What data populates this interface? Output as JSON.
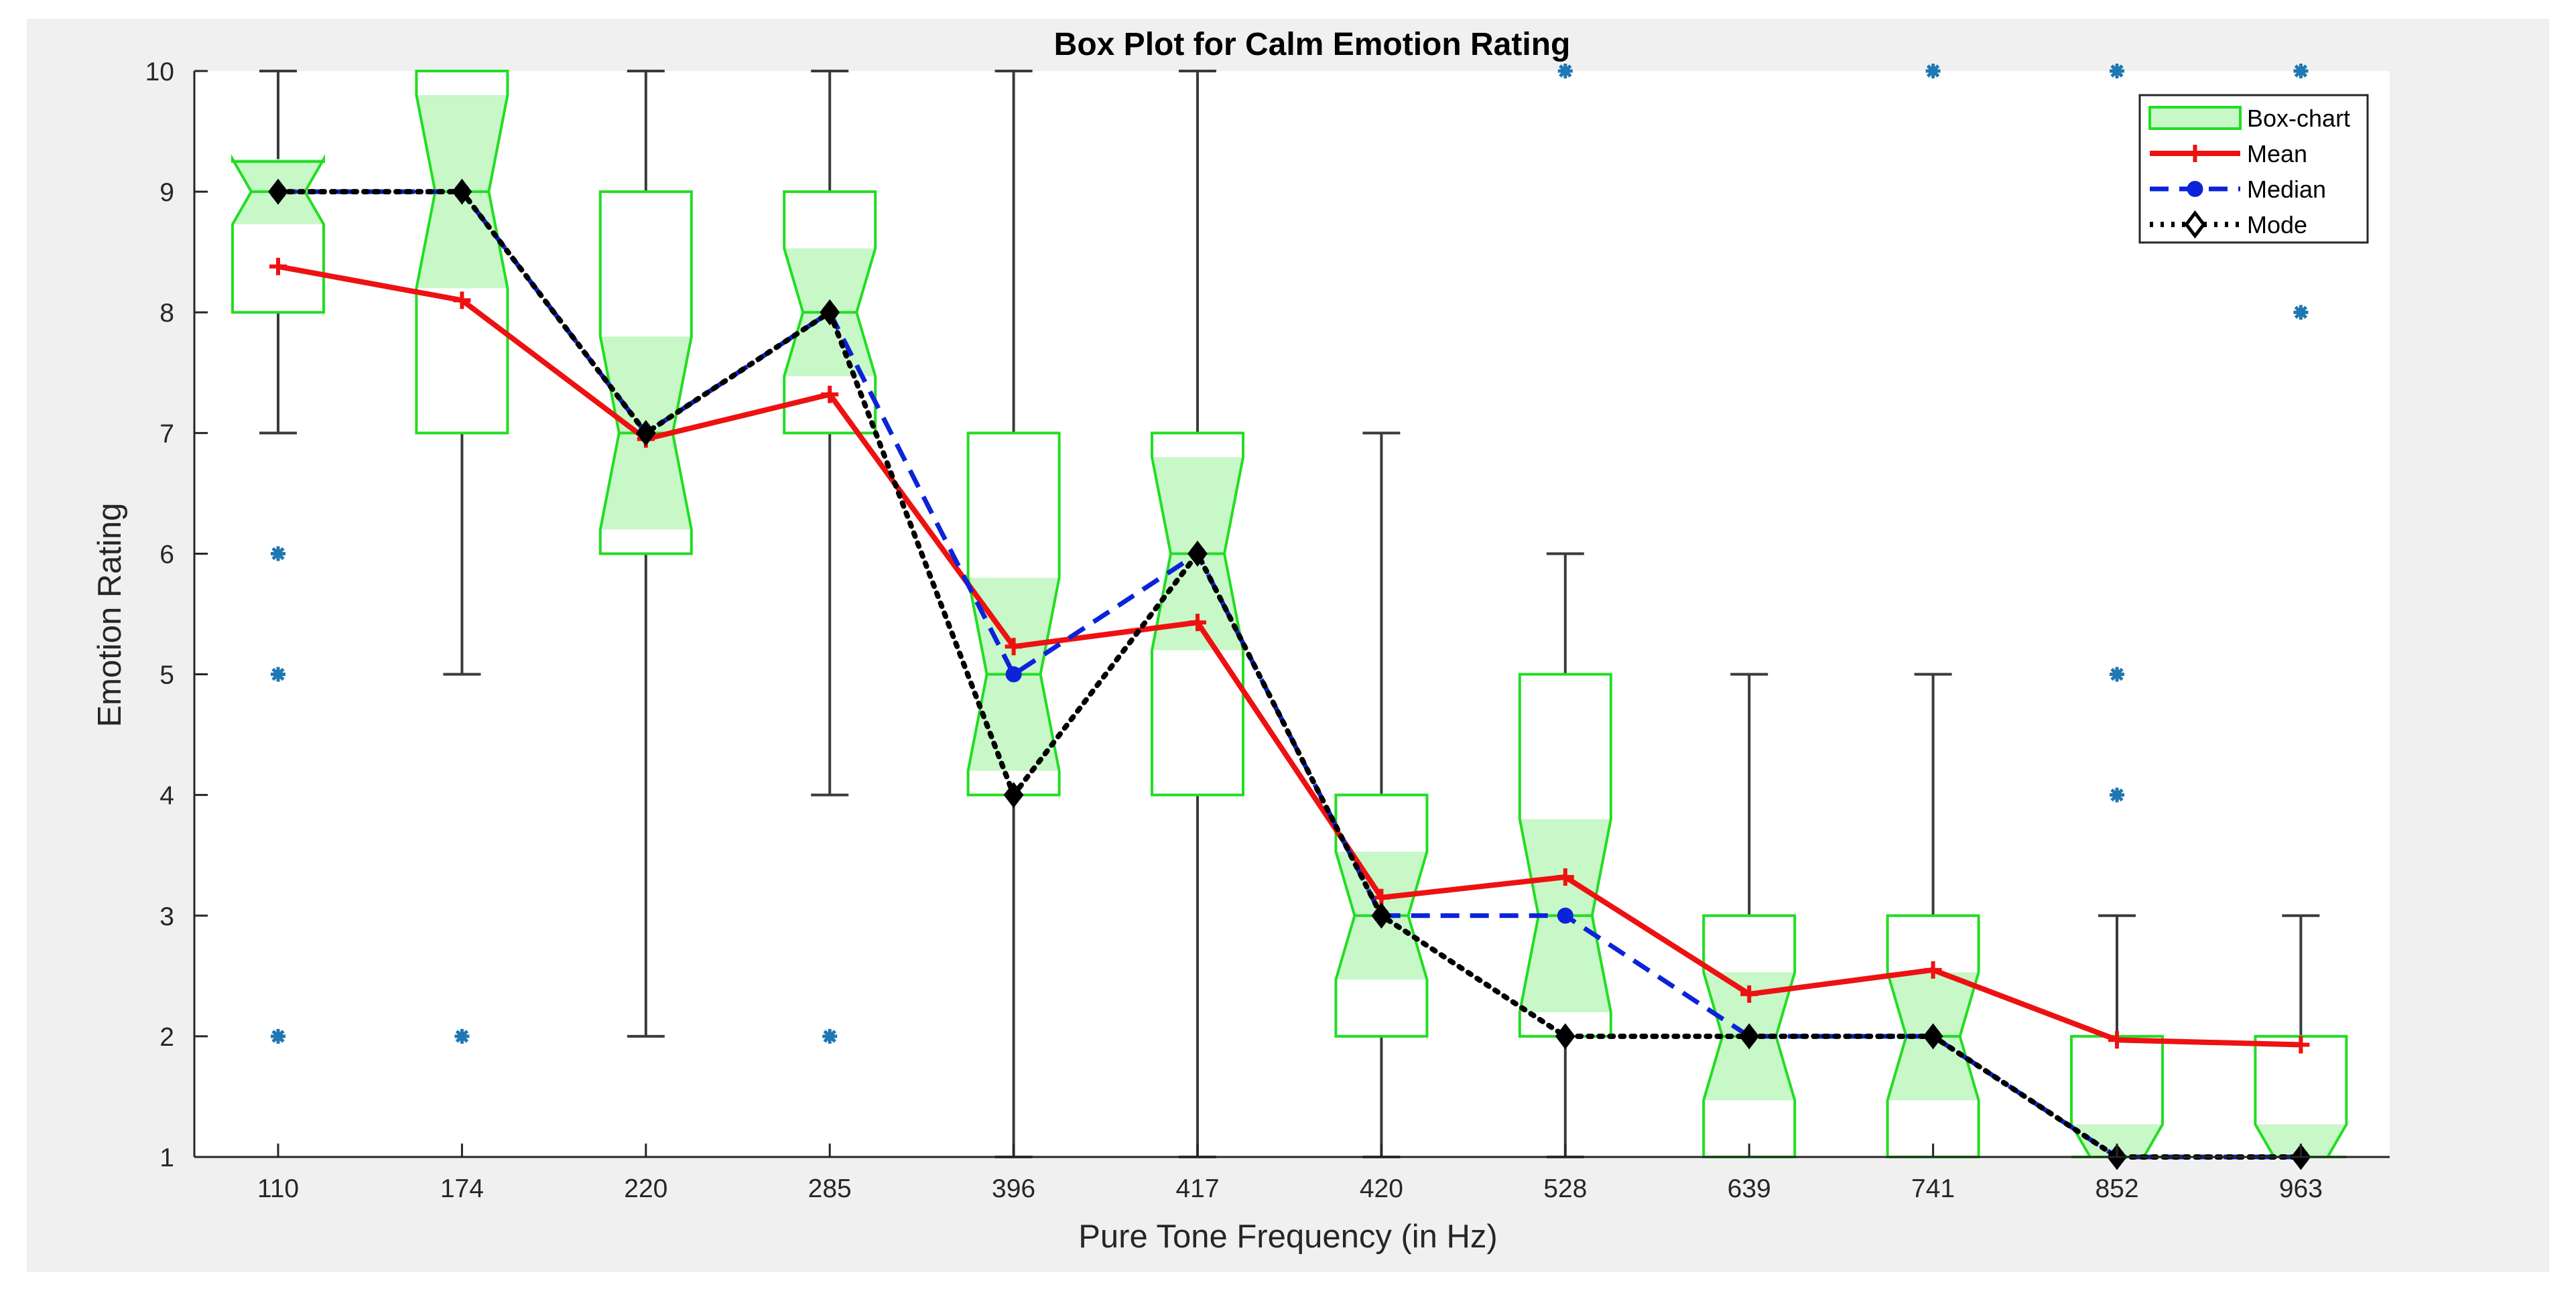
{
  "chart_data": {
    "type": "box",
    "title": "Box Plot for Calm Emotion Rating",
    "xlabel": "Pure Tone Frequency (in Hz)",
    "ylabel": "Emotion Rating",
    "ylim": [
      1,
      10
    ],
    "yticks": [
      1,
      2,
      3,
      4,
      5,
      6,
      7,
      8,
      9,
      10
    ],
    "grid": false,
    "legend_position": "top-right",
    "categories": [
      "110",
      "174",
      "220",
      "285",
      "396",
      "417",
      "420",
      "528",
      "639",
      "741",
      "852",
      "963"
    ],
    "boxes": [
      {
        "category": "110",
        "whisker_low": 7,
        "q1": 8,
        "median": 9,
        "q3": 9.25,
        "whisker_high": 10,
        "notch_low": 8.73,
        "notch_high": 9.27,
        "outliers": [
          6,
          5,
          2
        ]
      },
      {
        "category": "174",
        "whisker_low": 5,
        "q1": 7,
        "median": 9,
        "q3": 10,
        "whisker_high": 10,
        "notch_low": 8.2,
        "notch_high": 9.8,
        "outliers": [
          2
        ]
      },
      {
        "category": "220",
        "whisker_low": 2,
        "q1": 6,
        "median": 7,
        "q3": 9,
        "whisker_high": 10,
        "notch_low": 6.2,
        "notch_high": 7.8,
        "outliers": []
      },
      {
        "category": "285",
        "whisker_low": 4,
        "q1": 7,
        "median": 8,
        "q3": 9,
        "whisker_high": 10,
        "notch_low": 7.47,
        "notch_high": 8.53,
        "outliers": [
          2
        ]
      },
      {
        "category": "396",
        "whisker_low": 1,
        "q1": 4,
        "median": 5,
        "q3": 7,
        "whisker_high": 10,
        "notch_low": 4.2,
        "notch_high": 5.8,
        "outliers": []
      },
      {
        "category": "417",
        "whisker_low": 1,
        "q1": 4,
        "median": 6,
        "q3": 7,
        "whisker_high": 10,
        "notch_low": 5.2,
        "notch_high": 6.8,
        "outliers": []
      },
      {
        "category": "420",
        "whisker_low": 1,
        "q1": 2,
        "median": 3,
        "q3": 4,
        "whisker_high": 7,
        "notch_low": 2.47,
        "notch_high": 3.53,
        "outliers": []
      },
      {
        "category": "528",
        "whisker_low": 1,
        "q1": 2,
        "median": 3,
        "q3": 5,
        "whisker_high": 6,
        "notch_low": 2.2,
        "notch_high": 3.8,
        "outliers": [
          10
        ]
      },
      {
        "category": "639",
        "whisker_low": 1,
        "q1": 1,
        "median": 2,
        "q3": 3,
        "whisker_high": 5,
        "notch_low": 1.47,
        "notch_high": 2.53,
        "outliers": []
      },
      {
        "category": "741",
        "whisker_low": 1,
        "q1": 1,
        "median": 2,
        "q3": 3,
        "whisker_high": 5,
        "notch_low": 1.47,
        "notch_high": 2.53,
        "outliers": [
          10
        ]
      },
      {
        "category": "852",
        "whisker_low": 1,
        "q1": 1,
        "median": 1,
        "q3": 2,
        "whisker_high": 3,
        "notch_low": 1,
        "notch_high": 1.27,
        "outliers": [
          10,
          5,
          4
        ]
      },
      {
        "category": "963",
        "whisker_low": 1,
        "q1": 1,
        "median": 1,
        "q3": 2,
        "whisker_high": 3,
        "notch_low": 1,
        "notch_high": 1.27,
        "outliers": [
          10,
          8
        ]
      }
    ],
    "series": [
      {
        "name": "Mean",
        "color": "#ee1111",
        "values": [
          8.38,
          8.1,
          6.95,
          7.32,
          5.23,
          5.43,
          3.15,
          3.32,
          2.35,
          2.55,
          1.97,
          1.93
        ]
      },
      {
        "name": "Median",
        "color": "#0b23d9",
        "values": [
          9,
          9,
          7,
          8,
          5,
          6,
          3,
          3,
          2,
          2,
          1,
          1
        ]
      },
      {
        "name": "Mode",
        "color": "#000000",
        "values": [
          9,
          9,
          7,
          8,
          4,
          6,
          3,
          2,
          2,
          2,
          1,
          1
        ]
      }
    ],
    "legend": [
      "Box-chart",
      "Mean",
      "Median",
      "Mode"
    ],
    "colors": {
      "box_edge": "#22dd22",
      "box_fill": "#c8f7c8",
      "whisker": "#3a3a3a",
      "outlier": "#1f77b4",
      "mean": "#ee1111",
      "median": "#0b23d9",
      "mode": "#000000",
      "frame_bg": "#f0f0f0",
      "axes_bg": "#ffffff"
    }
  }
}
